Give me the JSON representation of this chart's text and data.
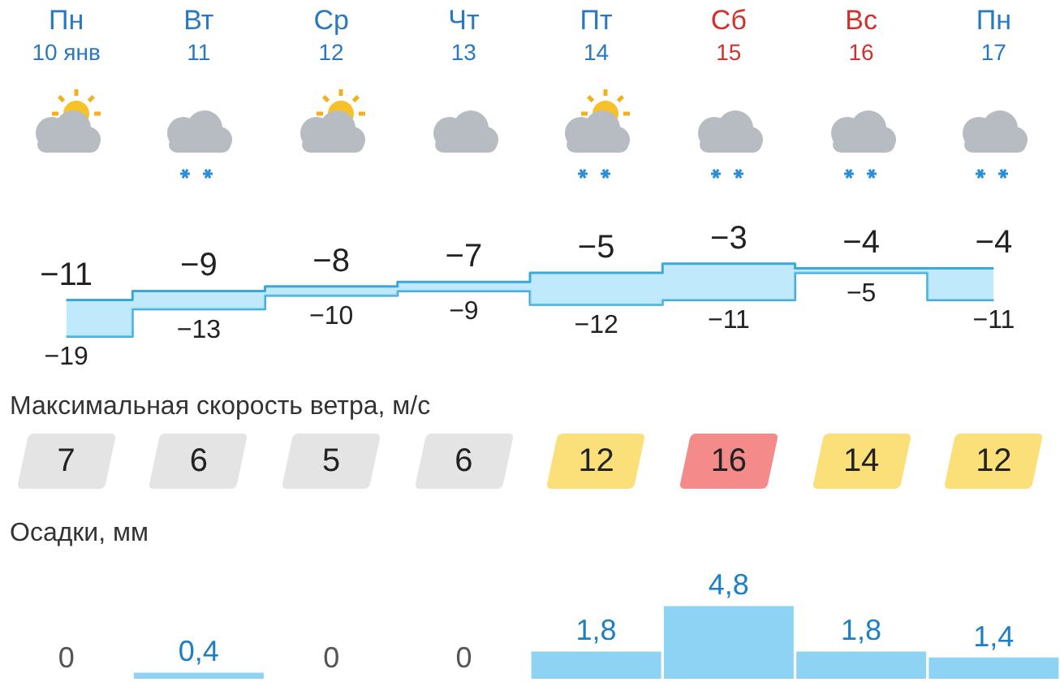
{
  "chart_data": [
    {
      "type": "step",
      "categories": [
        "Пн 10 янв",
        "Вт 11",
        "Ср 12",
        "Чт 13",
        "Пт 14",
        "Сб 15",
        "Вс 16",
        "Пн 17"
      ],
      "series": [
        {
          "color": "#3aa8d8",
          "values": [
            -11,
            -9,
            -8,
            -7,
            -5,
            -3,
            -4,
            -4
          ]
        },
        {
          "color": "#3aa8d8",
          "values": [
            -19,
            -13,
            -10,
            -9,
            -12,
            -11,
            -5,
            -11
          ]
        }
      ],
      "tick_labels": false,
      "data_labels": true
    },
    {
      "type": "other",
      "title": "Максимальная скорость ветра, м/с",
      "categories": [
        null,
        null,
        null,
        null,
        null,
        null,
        null,
        null
      ],
      "values": [
        7,
        6,
        5,
        6,
        12,
        16,
        14,
        12
      ],
      "colors": [
        "#e4e4e4",
        "#e4e4e4",
        "#e4e4e4",
        "#e4e4e4",
        "#fbe07a",
        "#f48a8a",
        "#fbe07a",
        "#fbe07a"
      ],
      "data_labels": true
    },
    {
      "type": "bar",
      "title": "Осадки, мм",
      "categories": [
        null,
        null,
        null,
        null,
        null,
        null,
        null,
        null
      ],
      "values": [
        0,
        0.4,
        0,
        0,
        1.8,
        4.8,
        1.8,
        1.4
      ],
      "value_labels": [
        "0",
        "0,4",
        "0",
        "0",
        "1,8",
        "4,8",
        "1,8",
        "1,4"
      ],
      "color": "#8fd3f4",
      "tick_labels": false
    }
  ]
}
